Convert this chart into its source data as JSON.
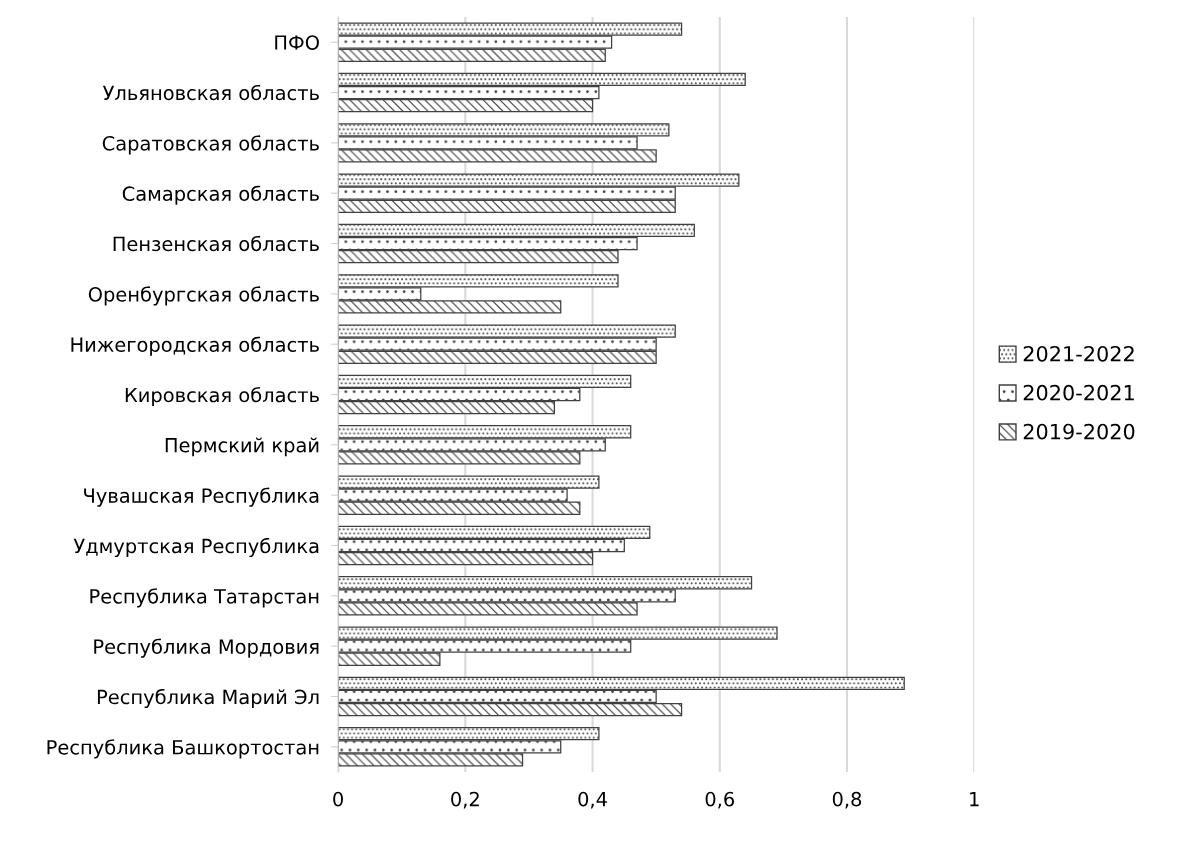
{
  "chart_data": {
    "type": "bar",
    "orientation": "horizontal",
    "categories": [
      "ПФО",
      "Ульяновская область",
      "Саратовская область",
      "Самарская область",
      "Пензенская область",
      "Оренбургская область",
      "Нижегородская область",
      "Кировская область",
      "Пермский край",
      "Чувашская Республика",
      "Удмуртская Республика",
      "Республика Татарстан",
      "Республика Мордовия",
      "Республика Марий Эл",
      "Республика Башкортостан"
    ],
    "series": [
      {
        "name": "2021-2022",
        "color": "#404040",
        "values": [
          0.54,
          0.64,
          0.52,
          0.63,
          0.56,
          0.44,
          0.53,
          0.46,
          0.46,
          0.41,
          0.49,
          0.65,
          0.69,
          0.89,
          0.41
        ]
      },
      {
        "name": "2020-2021",
        "color": "#404040",
        "values": [
          0.43,
          0.41,
          0.47,
          0.53,
          0.47,
          0.13,
          0.5,
          0.38,
          0.42,
          0.36,
          0.45,
          0.53,
          0.46,
          0.5,
          0.35
        ]
      },
      {
        "name": "2019-2020",
        "color": "#404040",
        "values": [
          0.42,
          0.4,
          0.5,
          0.53,
          0.44,
          0.35,
          0.5,
          0.34,
          0.38,
          0.38,
          0.4,
          0.47,
          0.16,
          0.54,
          0.29
        ]
      }
    ],
    "xlim": [
      0,
      1
    ],
    "xticks": [
      0,
      {
        "value": 0.2,
        "label": "0,2"
      },
      {
        "value": 0.4,
        "label": "0,4"
      },
      {
        "value": 0.6,
        "label": "0,6"
      },
      {
        "value": 0.8,
        "label": "0,8"
      },
      1
    ],
    "grid": "x",
    "legend": "right"
  }
}
